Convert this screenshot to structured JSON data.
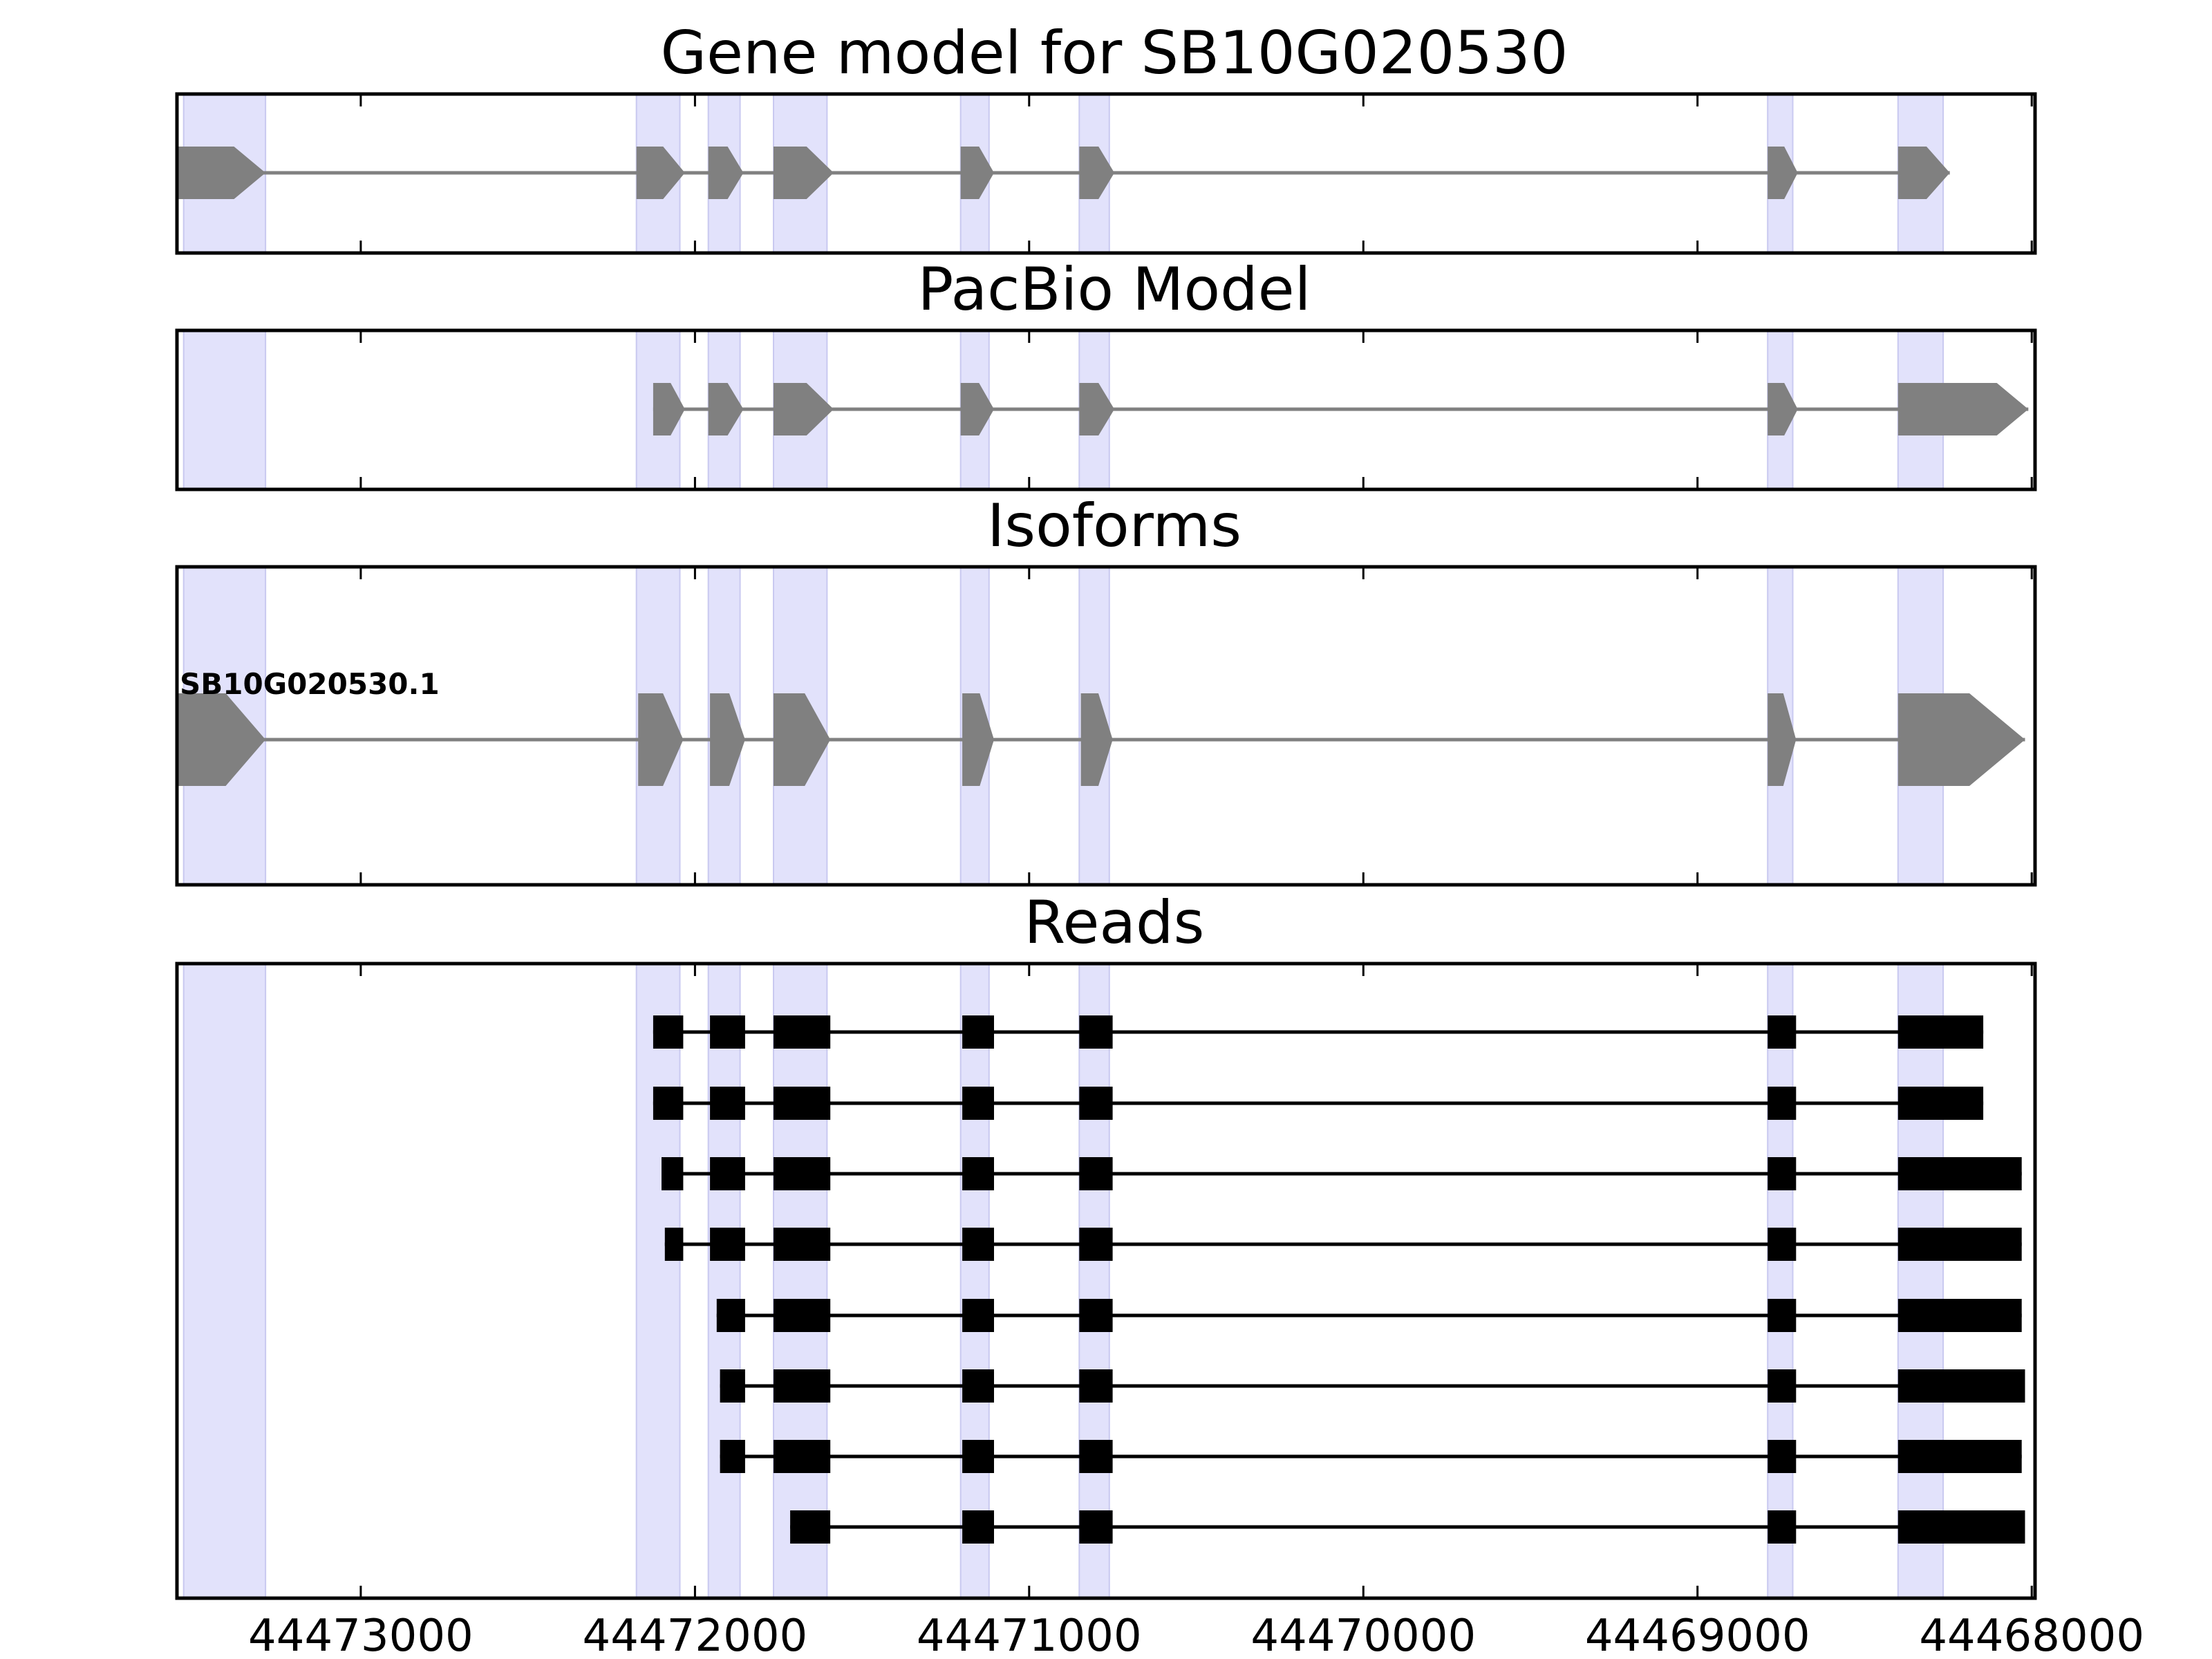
{
  "chart_data": {
    "type": "gene-structure",
    "strand": "-",
    "xlim": [
      44473550,
      44467990
    ],
    "x_ticks": [
      44473000,
      44472000,
      44471000,
      44470000,
      44469000,
      44468000
    ],
    "x_tick_labels": [
      "44473000",
      "44472000",
      "44471000",
      "44470000",
      "44469000",
      "44468000"
    ],
    "colors": {
      "exon_highlight": "#e2e2fb",
      "model_feature": "#808080",
      "read_feature": "#000000",
      "frame": "#000000"
    },
    "exon_highlight_bands": [
      [
        44473530,
        44473285
      ],
      [
        44472175,
        44472045
      ],
      [
        44471960,
        44471865
      ],
      [
        44471765,
        44471605
      ],
      [
        44471205,
        44471120
      ],
      [
        44470850,
        44470760
      ],
      [
        44468790,
        44468715
      ],
      [
        44468400,
        44468265
      ]
    ],
    "panels": [
      {
        "key": "gene_model",
        "title": "Gene model for SB10G020530",
        "models": [
          {
            "label": "",
            "exons": [
              [
                44473550,
                44473285
              ],
              [
                44472175,
                44472030
              ],
              [
                44471960,
                44471855
              ],
              [
                44471765,
                44471585
              ],
              [
                44471205,
                44471105
              ],
              [
                44470850,
                44470745
              ],
              [
                44468790,
                44468700
              ],
              [
                44468400,
                44468245
              ]
            ]
          }
        ]
      },
      {
        "key": "pacbio_model",
        "title": "PacBio Model",
        "models": [
          {
            "label": "",
            "exons": [
              [
                44472125,
                44472030
              ],
              [
                44471960,
                44471855
              ],
              [
                44471765,
                44471585
              ],
              [
                44471205,
                44471105
              ],
              [
                44470850,
                44470745
              ],
              [
                44468790,
                44468700
              ],
              [
                44468400,
                44468010
              ]
            ]
          }
        ]
      },
      {
        "key": "isoforms",
        "title": "Isoforms",
        "models": [
          {
            "label": "SB10G020530.1",
            "exons": [
              [
                44473550,
                44473285
              ],
              [
                44472170,
                44472035
              ],
              [
                44471955,
                44471850
              ],
              [
                44471765,
                44471595
              ],
              [
                44471200,
                44471105
              ],
              [
                44470845,
                44470750
              ],
              [
                44468790,
                44468705
              ],
              [
                44468400,
                44468020
              ]
            ]
          }
        ]
      },
      {
        "key": "reads",
        "title": "Reads",
        "reads": [
          [
            [
              44472125,
              44472035
            ],
            [
              44471955,
              44471850
            ],
            [
              44471765,
              44471595
            ],
            [
              44471200,
              44471105
            ],
            [
              44470850,
              44470750
            ],
            [
              44468790,
              44468705
            ],
            [
              44468400,
              44468145
            ]
          ],
          [
            [
              44472125,
              44472035
            ],
            [
              44471955,
              44471850
            ],
            [
              44471765,
              44471595
            ],
            [
              44471200,
              44471105
            ],
            [
              44470850,
              44470750
            ],
            [
              44468790,
              44468705
            ],
            [
              44468400,
              44468145
            ]
          ],
          [
            [
              44472100,
              44472035
            ],
            [
              44471955,
              44471850
            ],
            [
              44471765,
              44471595
            ],
            [
              44471200,
              44471105
            ],
            [
              44470850,
              44470750
            ],
            [
              44468790,
              44468705
            ],
            [
              44468400,
              44468030
            ]
          ],
          [
            [
              44472090,
              44472035
            ],
            [
              44471955,
              44471850
            ],
            [
              44471765,
              44471595
            ],
            [
              44471200,
              44471105
            ],
            [
              44470850,
              44470750
            ],
            [
              44468790,
              44468705
            ],
            [
              44468400,
              44468030
            ]
          ],
          [
            [
              44471935,
              44471850
            ],
            [
              44471765,
              44471595
            ],
            [
              44471200,
              44471105
            ],
            [
              44470850,
              44470750
            ],
            [
              44468790,
              44468705
            ],
            [
              44468400,
              44468030
            ]
          ],
          [
            [
              44471925,
              44471850
            ],
            [
              44471765,
              44471595
            ],
            [
              44471200,
              44471105
            ],
            [
              44470850,
              44470750
            ],
            [
              44468790,
              44468705
            ],
            [
              44468400,
              44468020
            ]
          ],
          [
            [
              44471925,
              44471850
            ],
            [
              44471765,
              44471595
            ],
            [
              44471200,
              44471105
            ],
            [
              44470850,
              44470750
            ],
            [
              44468790,
              44468705
            ],
            [
              44468400,
              44468030
            ]
          ],
          [
            [
              44471715,
              44471595
            ],
            [
              44471200,
              44471105
            ],
            [
              44470850,
              44470750
            ],
            [
              44468790,
              44468705
            ],
            [
              44468400,
              44468020
            ]
          ]
        ]
      }
    ]
  }
}
